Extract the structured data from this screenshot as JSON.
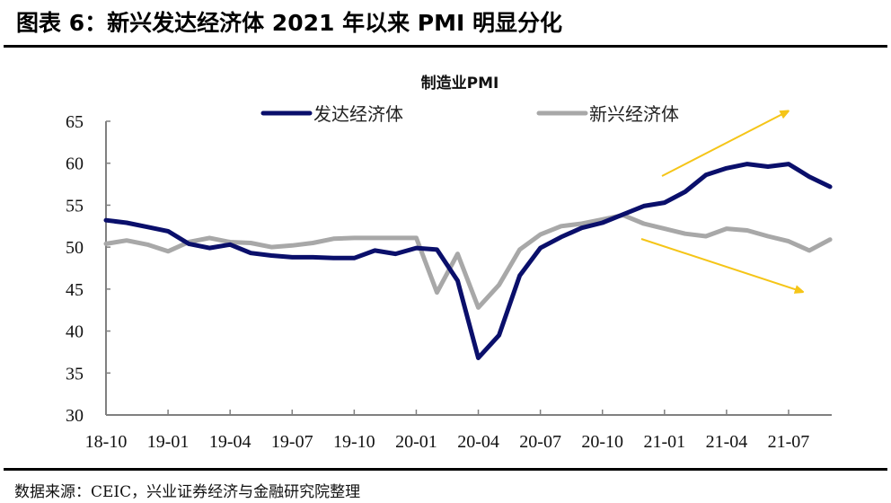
{
  "header": {
    "figure_title": "图表 6：新兴发达经济体 2021 年以来 PMI 明显分化"
  },
  "footer": {
    "source": "数据来源：CEIC，兴业证券经济与金融研究院整理"
  },
  "colors": {
    "developed": "#0a0f6b",
    "emerging": "#a8a8a8",
    "arrow": "#f5c518",
    "axis": "#808080"
  },
  "chart_data": {
    "type": "line",
    "title": "制造业PMI",
    "xlabel": "",
    "ylabel": "",
    "ylim": [
      30,
      65
    ],
    "yticks": [
      30,
      35,
      40,
      45,
      50,
      55,
      60,
      65
    ],
    "grid": false,
    "legend_position": "top",
    "x": [
      "18-10",
      "18-11",
      "18-12",
      "19-01",
      "19-02",
      "19-03",
      "19-04",
      "19-05",
      "19-06",
      "19-07",
      "19-08",
      "19-09",
      "19-10",
      "19-11",
      "19-12",
      "20-01",
      "20-02",
      "20-03",
      "20-04",
      "20-05",
      "20-06",
      "20-07",
      "20-08",
      "20-09",
      "20-10",
      "20-11",
      "20-12",
      "21-01",
      "21-02",
      "21-03",
      "21-04",
      "21-05",
      "21-06",
      "21-07",
      "21-08",
      "21-09"
    ],
    "xtick_labels": [
      "18-10",
      "19-01",
      "19-04",
      "19-07",
      "19-10",
      "20-01",
      "20-04",
      "20-07",
      "20-10",
      "21-01",
      "21-04",
      "21-07"
    ],
    "series": [
      {
        "name": "发达经济体",
        "values": [
          53.2,
          52.9,
          52.4,
          51.9,
          50.4,
          49.9,
          50.3,
          49.3,
          49.0,
          48.8,
          48.8,
          48.7,
          48.7,
          49.6,
          49.2,
          49.9,
          49.7,
          46.0,
          36.8,
          39.5,
          46.6,
          49.9,
          51.2,
          52.3,
          52.9,
          53.9,
          54.9,
          55.3,
          56.6,
          58.6,
          59.4,
          59.9,
          59.6,
          59.9,
          58.4,
          57.2
        ]
      },
      {
        "name": "新兴经济体",
        "values": [
          50.4,
          50.8,
          50.3,
          49.5,
          50.6,
          51.1,
          50.6,
          50.5,
          50.0,
          50.2,
          50.5,
          51.0,
          51.1,
          51.1,
          51.1,
          51.1,
          44.6,
          49.2,
          42.8,
          45.5,
          49.7,
          51.5,
          52.5,
          52.8,
          53.3,
          53.8,
          52.8,
          52.2,
          51.6,
          51.3,
          52.2,
          52.0,
          51.3,
          50.7,
          49.6,
          50.9
        ]
      }
    ],
    "annotations": [
      {
        "type": "arrow",
        "meaning": "developed trend up"
      },
      {
        "type": "arrow",
        "meaning": "emerging trend down"
      }
    ]
  }
}
